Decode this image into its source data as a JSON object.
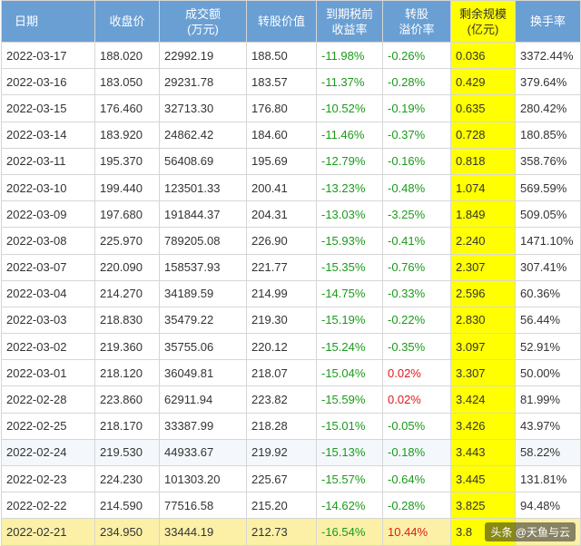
{
  "table": {
    "headers": {
      "date": "日期",
      "close": "收盘价",
      "volume_l1": "成交额",
      "volume_l2": "(万元)",
      "conv_value": "转股价值",
      "ytm_l1": "到期税前",
      "ytm_l2": "收益率",
      "premium_l1": "转股",
      "premium_l2": "溢价率",
      "scale_l1": "剩余规模",
      "scale_l2": "(亿元)",
      "turnover": "换手率"
    },
    "rows": [
      {
        "date": "2022-03-17",
        "close": "188.020",
        "volume": "22992.19",
        "conv_value": "188.50",
        "ytm": "-11.98%",
        "premium": "-0.26%",
        "scale": "0.036",
        "turnover": "3372.44%"
      },
      {
        "date": "2022-03-16",
        "close": "183.050",
        "volume": "29231.78",
        "conv_value": "183.57",
        "ytm": "-11.37%",
        "premium": "-0.28%",
        "scale": "0.429",
        "turnover": "379.64%"
      },
      {
        "date": "2022-03-15",
        "close": "176.460",
        "volume": "32713.30",
        "conv_value": "176.80",
        "ytm": "-10.52%",
        "premium": "-0.19%",
        "scale": "0.635",
        "turnover": "280.42%"
      },
      {
        "date": "2022-03-14",
        "close": "183.920",
        "volume": "24862.42",
        "conv_value": "184.60",
        "ytm": "-11.46%",
        "premium": "-0.37%",
        "scale": "0.728",
        "turnover": "180.85%"
      },
      {
        "date": "2022-03-11",
        "close": "195.370",
        "volume": "56408.69",
        "conv_value": "195.69",
        "ytm": "-12.79%",
        "premium": "-0.16%",
        "scale": "0.818",
        "turnover": "358.76%"
      },
      {
        "date": "2022-03-10",
        "close": "199.440",
        "volume": "123501.33",
        "conv_value": "200.41",
        "ytm": "-13.23%",
        "premium": "-0.48%",
        "scale": "1.074",
        "turnover": "569.59%"
      },
      {
        "date": "2022-03-09",
        "close": "197.680",
        "volume": "191844.37",
        "conv_value": "204.31",
        "ytm": "-13.03%",
        "premium": "-3.25%",
        "scale": "1.849",
        "turnover": "509.05%"
      },
      {
        "date": "2022-03-08",
        "close": "225.970",
        "volume": "789205.08",
        "conv_value": "226.90",
        "ytm": "-15.93%",
        "premium": "-0.41%",
        "scale": "2.240",
        "turnover": "1471.10%"
      },
      {
        "date": "2022-03-07",
        "close": "220.090",
        "volume": "158537.93",
        "conv_value": "221.77",
        "ytm": "-15.35%",
        "premium": "-0.76%",
        "scale": "2.307",
        "turnover": "307.41%"
      },
      {
        "date": "2022-03-04",
        "close": "214.270",
        "volume": "34189.59",
        "conv_value": "214.99",
        "ytm": "-14.75%",
        "premium": "-0.33%",
        "scale": "2.596",
        "turnover": "60.36%"
      },
      {
        "date": "2022-03-03",
        "close": "218.830",
        "volume": "35479.22",
        "conv_value": "219.30",
        "ytm": "-15.19%",
        "premium": "-0.22%",
        "scale": "2.830",
        "turnover": "56.44%"
      },
      {
        "date": "2022-03-02",
        "close": "219.360",
        "volume": "35755.06",
        "conv_value": "220.12",
        "ytm": "-15.24%",
        "premium": "-0.35%",
        "scale": "3.097",
        "turnover": "52.91%"
      },
      {
        "date": "2022-03-01",
        "close": "218.120",
        "volume": "36049.81",
        "conv_value": "218.07",
        "ytm": "-15.04%",
        "premium": "0.02%",
        "scale": "3.307",
        "turnover": "50.00%"
      },
      {
        "date": "2022-02-28",
        "close": "223.860",
        "volume": "62911.94",
        "conv_value": "223.82",
        "ytm": "-15.59%",
        "premium": "0.02%",
        "scale": "3.424",
        "turnover": "81.99%"
      },
      {
        "date": "2022-02-25",
        "close": "218.170",
        "volume": "33387.99",
        "conv_value": "218.28",
        "ytm": "-15.01%",
        "premium": "-0.05%",
        "scale": "3.426",
        "turnover": "43.97%"
      },
      {
        "date": "2022-02-24",
        "close": "219.530",
        "volume": "44933.67",
        "conv_value": "219.92",
        "ytm": "-15.13%",
        "premium": "-0.18%",
        "scale": "3.443",
        "turnover": "58.22%"
      },
      {
        "date": "2022-02-23",
        "close": "224.230",
        "volume": "101303.20",
        "conv_value": "225.67",
        "ytm": "-15.57%",
        "premium": "-0.64%",
        "scale": "3.445",
        "turnover": "131.81%"
      },
      {
        "date": "2022-02-22",
        "close": "214.590",
        "volume": "77516.58",
        "conv_value": "215.20",
        "ytm": "-14.62%",
        "premium": "-0.28%",
        "scale": "3.825",
        "turnover": "94.48%"
      },
      {
        "date": "2022-02-21",
        "close": "234.950",
        "volume": "33444.19",
        "conv_value": "212.73",
        "ytm": "-16.54%",
        "premium": "10.44%",
        "scale": "3.8",
        "turnover": ""
      }
    ]
  },
  "watermark": {
    "text": "头条 @天鱼与云"
  },
  "colors": {
    "header_bg": "#6a9fd4",
    "negative": "#1a9a1a",
    "positive": "#e01818",
    "scale_highlight": "#ffff00",
    "last_row_bg": "#fbf0a6"
  }
}
